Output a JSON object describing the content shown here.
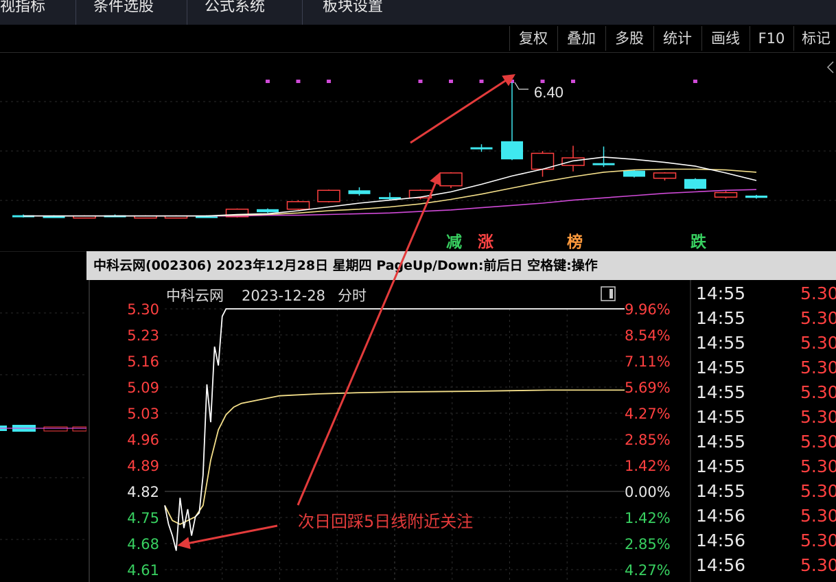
{
  "top_menu": {
    "items": [
      "视指标",
      "条件选股",
      "公式系统",
      "板块设置"
    ]
  },
  "toolbar": {
    "buttons": [
      "复权",
      "叠加",
      "多股",
      "统计",
      "画线",
      "F10",
      "标记"
    ]
  },
  "colors": {
    "up": "#ff4040",
    "down": "#3fe8f0",
    "ma5": "#ffffff",
    "ma10": "#f5e08a",
    "ma20": "#d04ad8",
    "arrow": "#e33b3b",
    "green_text": "#38d060",
    "signal_red": "#ff4444",
    "signal_orange": "#ff9a3c"
  },
  "popup": {
    "title": "中科云网(002306) 2023年12月28日 星期四 PageUp/Down:前后日 空格键:操作",
    "chart_title": "中科云网",
    "chart_date": "2023-12-28",
    "chart_kind": "分时",
    "annotation": "次日回踩5日线附近关注"
  },
  "chart_data": [
    {
      "type": "candlestick",
      "max_label": "6.40",
      "signal_labels": [
        {
          "text": "减",
          "color": "green"
        },
        {
          "text": "涨",
          "color": "red"
        },
        {
          "text": "榜",
          "color": "orange"
        },
        {
          "text": "跌",
          "color": "green"
        }
      ],
      "candles": [
        {
          "o": 4.64,
          "c": 4.62,
          "h": 4.65,
          "l": 4.61
        },
        {
          "o": 4.63,
          "c": 4.62,
          "h": 4.64,
          "l": 4.61
        },
        {
          "o": 4.63,
          "c": 4.63,
          "h": 4.64,
          "l": 4.62
        },
        {
          "o": 4.64,
          "c": 4.63,
          "h": 4.65,
          "l": 4.62
        },
        {
          "o": 4.63,
          "c": 4.63,
          "h": 4.64,
          "l": 4.62
        },
        {
          "o": 4.62,
          "c": 4.63,
          "h": 4.64,
          "l": 4.61
        },
        {
          "o": 4.63,
          "c": 4.62,
          "h": 4.64,
          "l": 4.61
        },
        {
          "o": 4.62,
          "c": 4.72,
          "h": 4.73,
          "l": 4.61
        },
        {
          "o": 4.72,
          "c": 4.68,
          "h": 4.73,
          "l": 4.67
        },
        {
          "o": 4.72,
          "c": 4.82,
          "h": 4.84,
          "l": 4.71
        },
        {
          "o": 4.82,
          "c": 4.97,
          "h": 4.98,
          "l": 4.81
        },
        {
          "o": 4.97,
          "c": 4.92,
          "h": 5.01,
          "l": 4.9
        },
        {
          "o": 4.88,
          "c": 4.86,
          "h": 4.94,
          "l": 4.84
        },
        {
          "o": 4.87,
          "c": 4.97,
          "h": 4.98,
          "l": 4.85
        },
        {
          "o": 5.03,
          "c": 5.2,
          "h": 5.21,
          "l": 5.0
        },
        {
          "o": 5.54,
          "c": 5.53,
          "h": 5.58,
          "l": 5.48
        },
        {
          "o": 5.62,
          "c": 5.38,
          "h": 6.4,
          "l": 5.37
        },
        {
          "o": 5.25,
          "c": 5.46,
          "h": 5.49,
          "l": 5.15
        },
        {
          "o": 5.3,
          "c": 5.4,
          "h": 5.56,
          "l": 5.22
        },
        {
          "o": 5.33,
          "c": 5.32,
          "h": 5.55,
          "l": 5.28
        },
        {
          "o": 5.23,
          "c": 5.15,
          "h": 5.24,
          "l": 5.14
        },
        {
          "o": 5.13,
          "c": 5.2,
          "h": 5.21,
          "l": 5.1
        },
        {
          "o": 5.12,
          "c": 4.99,
          "h": 5.13,
          "l": 4.98
        },
        {
          "o": 4.88,
          "c": 4.94,
          "h": 4.96,
          "l": 4.86
        },
        {
          "o": 4.9,
          "c": 4.87,
          "h": 4.91,
          "l": 4.86
        }
      ],
      "ma5": [
        4.63,
        4.63,
        4.63,
        4.63,
        4.63,
        4.63,
        4.63,
        4.65,
        4.66,
        4.7,
        4.75,
        4.8,
        4.84,
        4.88,
        4.95,
        5.05,
        5.16,
        5.25,
        5.36,
        5.41,
        5.38,
        5.34,
        5.29,
        5.2,
        5.1
      ],
      "ma10": [
        4.63,
        4.63,
        4.63,
        4.63,
        4.63,
        4.63,
        4.63,
        4.64,
        4.65,
        4.67,
        4.7,
        4.72,
        4.75,
        4.79,
        4.85,
        4.92,
        5.0,
        5.08,
        5.15,
        5.21,
        5.24,
        5.25,
        5.25,
        5.24,
        5.21
      ],
      "ma20": [
        4.63,
        4.63,
        4.63,
        4.63,
        4.63,
        4.63,
        4.63,
        4.63,
        4.64,
        4.64,
        4.65,
        4.66,
        4.67,
        4.69,
        4.71,
        4.74,
        4.77,
        4.8,
        4.84,
        4.87,
        4.9,
        4.93,
        4.95,
        4.97,
        4.98
      ]
    },
    {
      "type": "line",
      "title": "中科云网 2023-12-28 分时",
      "prev_close": 4.82,
      "ylim": [
        4.61,
        5.3
      ],
      "y_ticks": [
        "5.30",
        "5.23",
        "5.16",
        "5.09",
        "5.03",
        "4.96",
        "4.89",
        "4.82",
        "4.75",
        "4.68",
        "4.61"
      ],
      "pct_ticks": [
        "9.96%",
        "8.54%",
        "7.11%",
        "5.69%",
        "4.27%",
        "2.85%",
        "1.42%",
        "0.00%",
        "1.42%",
        "2.85%",
        "4.27%"
      ],
      "series": [
        {
          "key": "price",
          "x": [
            0,
            2,
            4,
            6,
            8,
            10,
            12,
            14,
            16,
            18,
            20,
            22,
            24,
            26,
            28,
            30,
            32,
            34,
            36,
            40,
            60,
            120,
            240
          ],
          "values": [
            4.78,
            4.73,
            4.7,
            4.66,
            4.8,
            4.72,
            4.77,
            4.7,
            4.75,
            4.76,
            4.86,
            5.1,
            5.0,
            5.2,
            5.15,
            5.28,
            5.3,
            5.3,
            5.3,
            5.3,
            5.3,
            5.3,
            5.3
          ]
        },
        {
          "key": "avg",
          "x": [
            0,
            4,
            8,
            12,
            16,
            20,
            24,
            28,
            32,
            36,
            40,
            50,
            60,
            80,
            100,
            120,
            160,
            200,
            240
          ],
          "values": [
            4.78,
            4.74,
            4.73,
            4.74,
            4.75,
            4.78,
            4.9,
            4.98,
            5.02,
            5.04,
            5.05,
            5.06,
            5.07,
            5.075,
            5.078,
            5.08,
            5.082,
            5.085,
            5.085
          ]
        }
      ]
    }
  ],
  "tick_list": [
    {
      "time": "14:55",
      "price": "5.30"
    },
    {
      "time": "14:55",
      "price": "5.30"
    },
    {
      "time": "14:55",
      "price": "5.30"
    },
    {
      "time": "14:55",
      "price": "5.30"
    },
    {
      "time": "14:55",
      "price": "5.30"
    },
    {
      "time": "14:55",
      "price": "5.30"
    },
    {
      "time": "14:55",
      "price": "5.30"
    },
    {
      "time": "14:55",
      "price": "5.30"
    },
    {
      "time": "14:55",
      "price": "5.30"
    },
    {
      "time": "14:56",
      "price": "5.30"
    },
    {
      "time": "14:56",
      "price": "5.30"
    },
    {
      "time": "14:56",
      "price": "5.30"
    }
  ]
}
